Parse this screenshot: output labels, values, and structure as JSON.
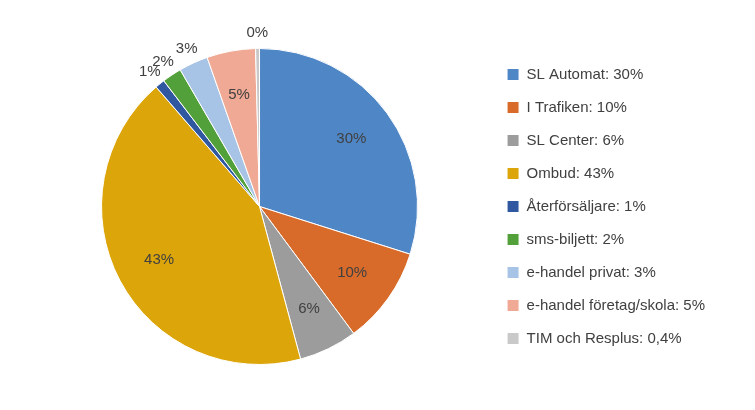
{
  "chart_data": {
    "type": "pie",
    "categories": [
      "SL Automat: 30%",
      "I Trafiken: 10%",
      "SL Center: 6%",
      "Ombud: 43%",
      "Återförsäljare: 1%",
      "sms-biljett: 2%",
      "e-handel privat: 3%",
      "e-handel företag/skola: 5%",
      "TIM och Resplus: 0,4%"
    ],
    "values": [
      30,
      10,
      6,
      43,
      1,
      2,
      3,
      5,
      0.4
    ],
    "value_labels": [
      "30%",
      "10%",
      "6%",
      "43%",
      "1%",
      "2%",
      "3%",
      "5%",
      "0%"
    ],
    "colors": [
      "#4f86c6",
      "#d86b2a",
      "#9c9c9c",
      "#dca50a",
      "#2f58a0",
      "#52a03a",
      "#a7c3e6",
      "#f0a994",
      "#c9c9c9"
    ],
    "legend": "right",
    "data_labels": true
  }
}
